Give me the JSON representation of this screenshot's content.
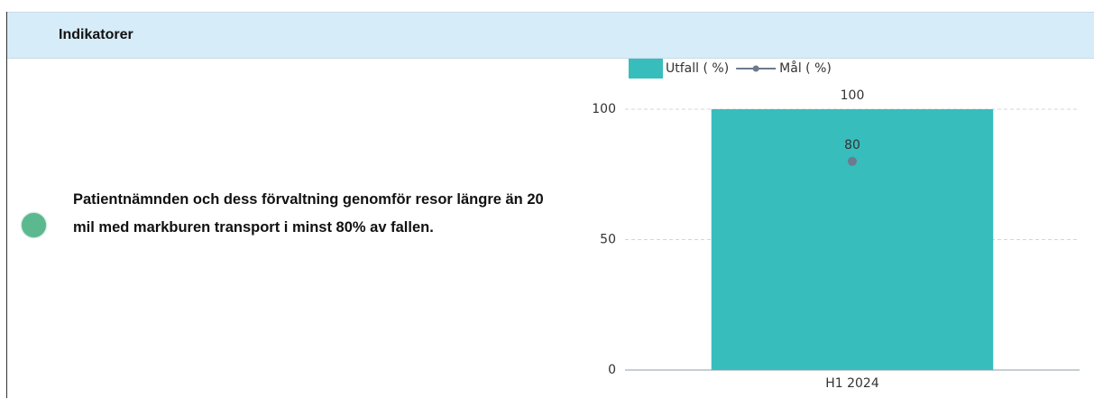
{
  "header": {
    "title": "Indikatorer"
  },
  "indicator": {
    "text": "Patientnämnden och dess förvaltning genomför resor längre än 20 mil med markburen transport i minst 80% av fallen."
  },
  "chart_data": {
    "type": "bar",
    "categories": [
      "H1 2024"
    ],
    "series": [
      {
        "name": "Utfall ( %)",
        "color": "#38bdbd",
        "type": "bar",
        "values": [
          100
        ]
      },
      {
        "name": "Mål ( %)",
        "color": "#6b7a8f",
        "type": "line",
        "values": [
          80
        ]
      }
    ],
    "ylim": [
      0,
      100
    ],
    "yticks": [
      0,
      50,
      100
    ],
    "grid": true,
    "legend": "top"
  }
}
